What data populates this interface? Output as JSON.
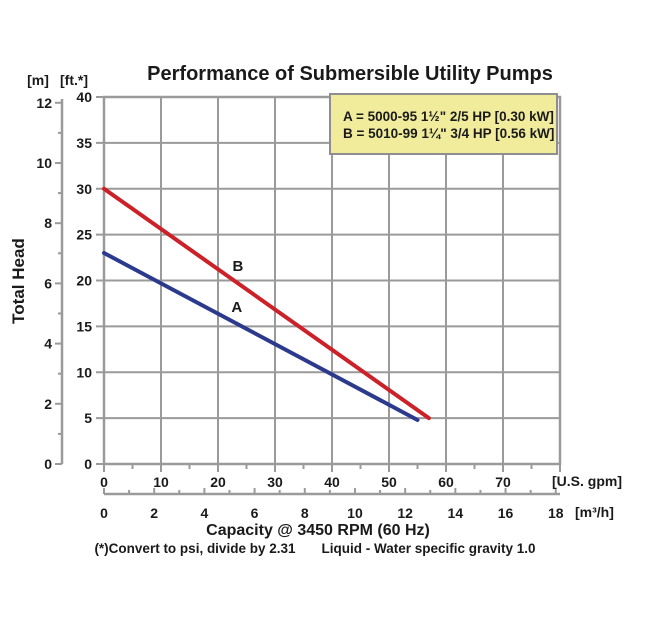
{
  "title": "Performance of Submersible Utility Pumps",
  "axes": {
    "y_label": "Total Head",
    "y_m_unit": "[m]",
    "y_ft_unit": "[ft.*]",
    "x_label": "Capacity @ 3450 RPM (60 Hz)",
    "x_gpm_unit": "[U.S. gpm]",
    "x_m3h_unit": "[m³/h]"
  },
  "legend": {
    "lines": [
      "A = 5000-95 1½\" 2/5 HP [0.30 kW]",
      "B = 5010-99 1¼\" 3/4 HP [0.56 kW]"
    ]
  },
  "footnote": {
    "left": "(*)Convert to psi, divide by 2.31",
    "right": "Liquid - Water specific gravity 1.0"
  },
  "colors": {
    "grid": "#9A9A9A",
    "axis": "#9A9A9A",
    "text": "#1A1A1A",
    "legend_bg": "#F1EB9C",
    "legend_border": "#8E8E8E",
    "series_a_blue": "#2C3A8E",
    "series_b_red": "#CC2128"
  },
  "chart_data": {
    "type": "line",
    "title": "Performance of Submersible Utility Pumps",
    "xlabel": "Capacity @ 3450 RPM (60 Hz)",
    "ylabel": "Total Head",
    "x_units": [
      "U.S. gpm",
      "m³/h"
    ],
    "y_units": [
      "ft",
      "m"
    ],
    "x_range_gpm": [
      0,
      80
    ],
    "y_range_ft": [
      0,
      40
    ],
    "grid": true,
    "gpm_tick_labels": [
      0,
      10,
      20,
      30,
      40,
      50,
      60,
      70
    ],
    "gpm_minor_tick_step": 5,
    "m3h_tick_labels": [
      0,
      2,
      4,
      6,
      8,
      10,
      12,
      14,
      16,
      18
    ],
    "m3h_minor_tick_step": 1,
    "ft_tick_labels": [
      40,
      35,
      30,
      25,
      20,
      15,
      10,
      5,
      0
    ],
    "m_tick_labels": [
      12,
      10,
      8,
      6,
      4,
      2,
      0
    ],
    "m_minor_tick_step": 1,
    "series": [
      {
        "name": "A",
        "pump_model": "5000-95",
        "rating": "2/5 HP [0.30 kW]",
        "color": "#2C3A8E",
        "points_gpm_ft": [
          [
            0,
            23
          ],
          [
            55,
            4.8
          ]
        ],
        "label_gpm_ft": [
          23.3,
          17.1
        ]
      },
      {
        "name": "B",
        "pump_model": "5010-99",
        "rating": "3/4 HP [0.56 kW]",
        "color": "#CC2128",
        "points_gpm_ft": [
          [
            0,
            30
          ],
          [
            57,
            5
          ]
        ],
        "label_gpm_ft": [
          23.5,
          21.6
        ]
      }
    ]
  }
}
